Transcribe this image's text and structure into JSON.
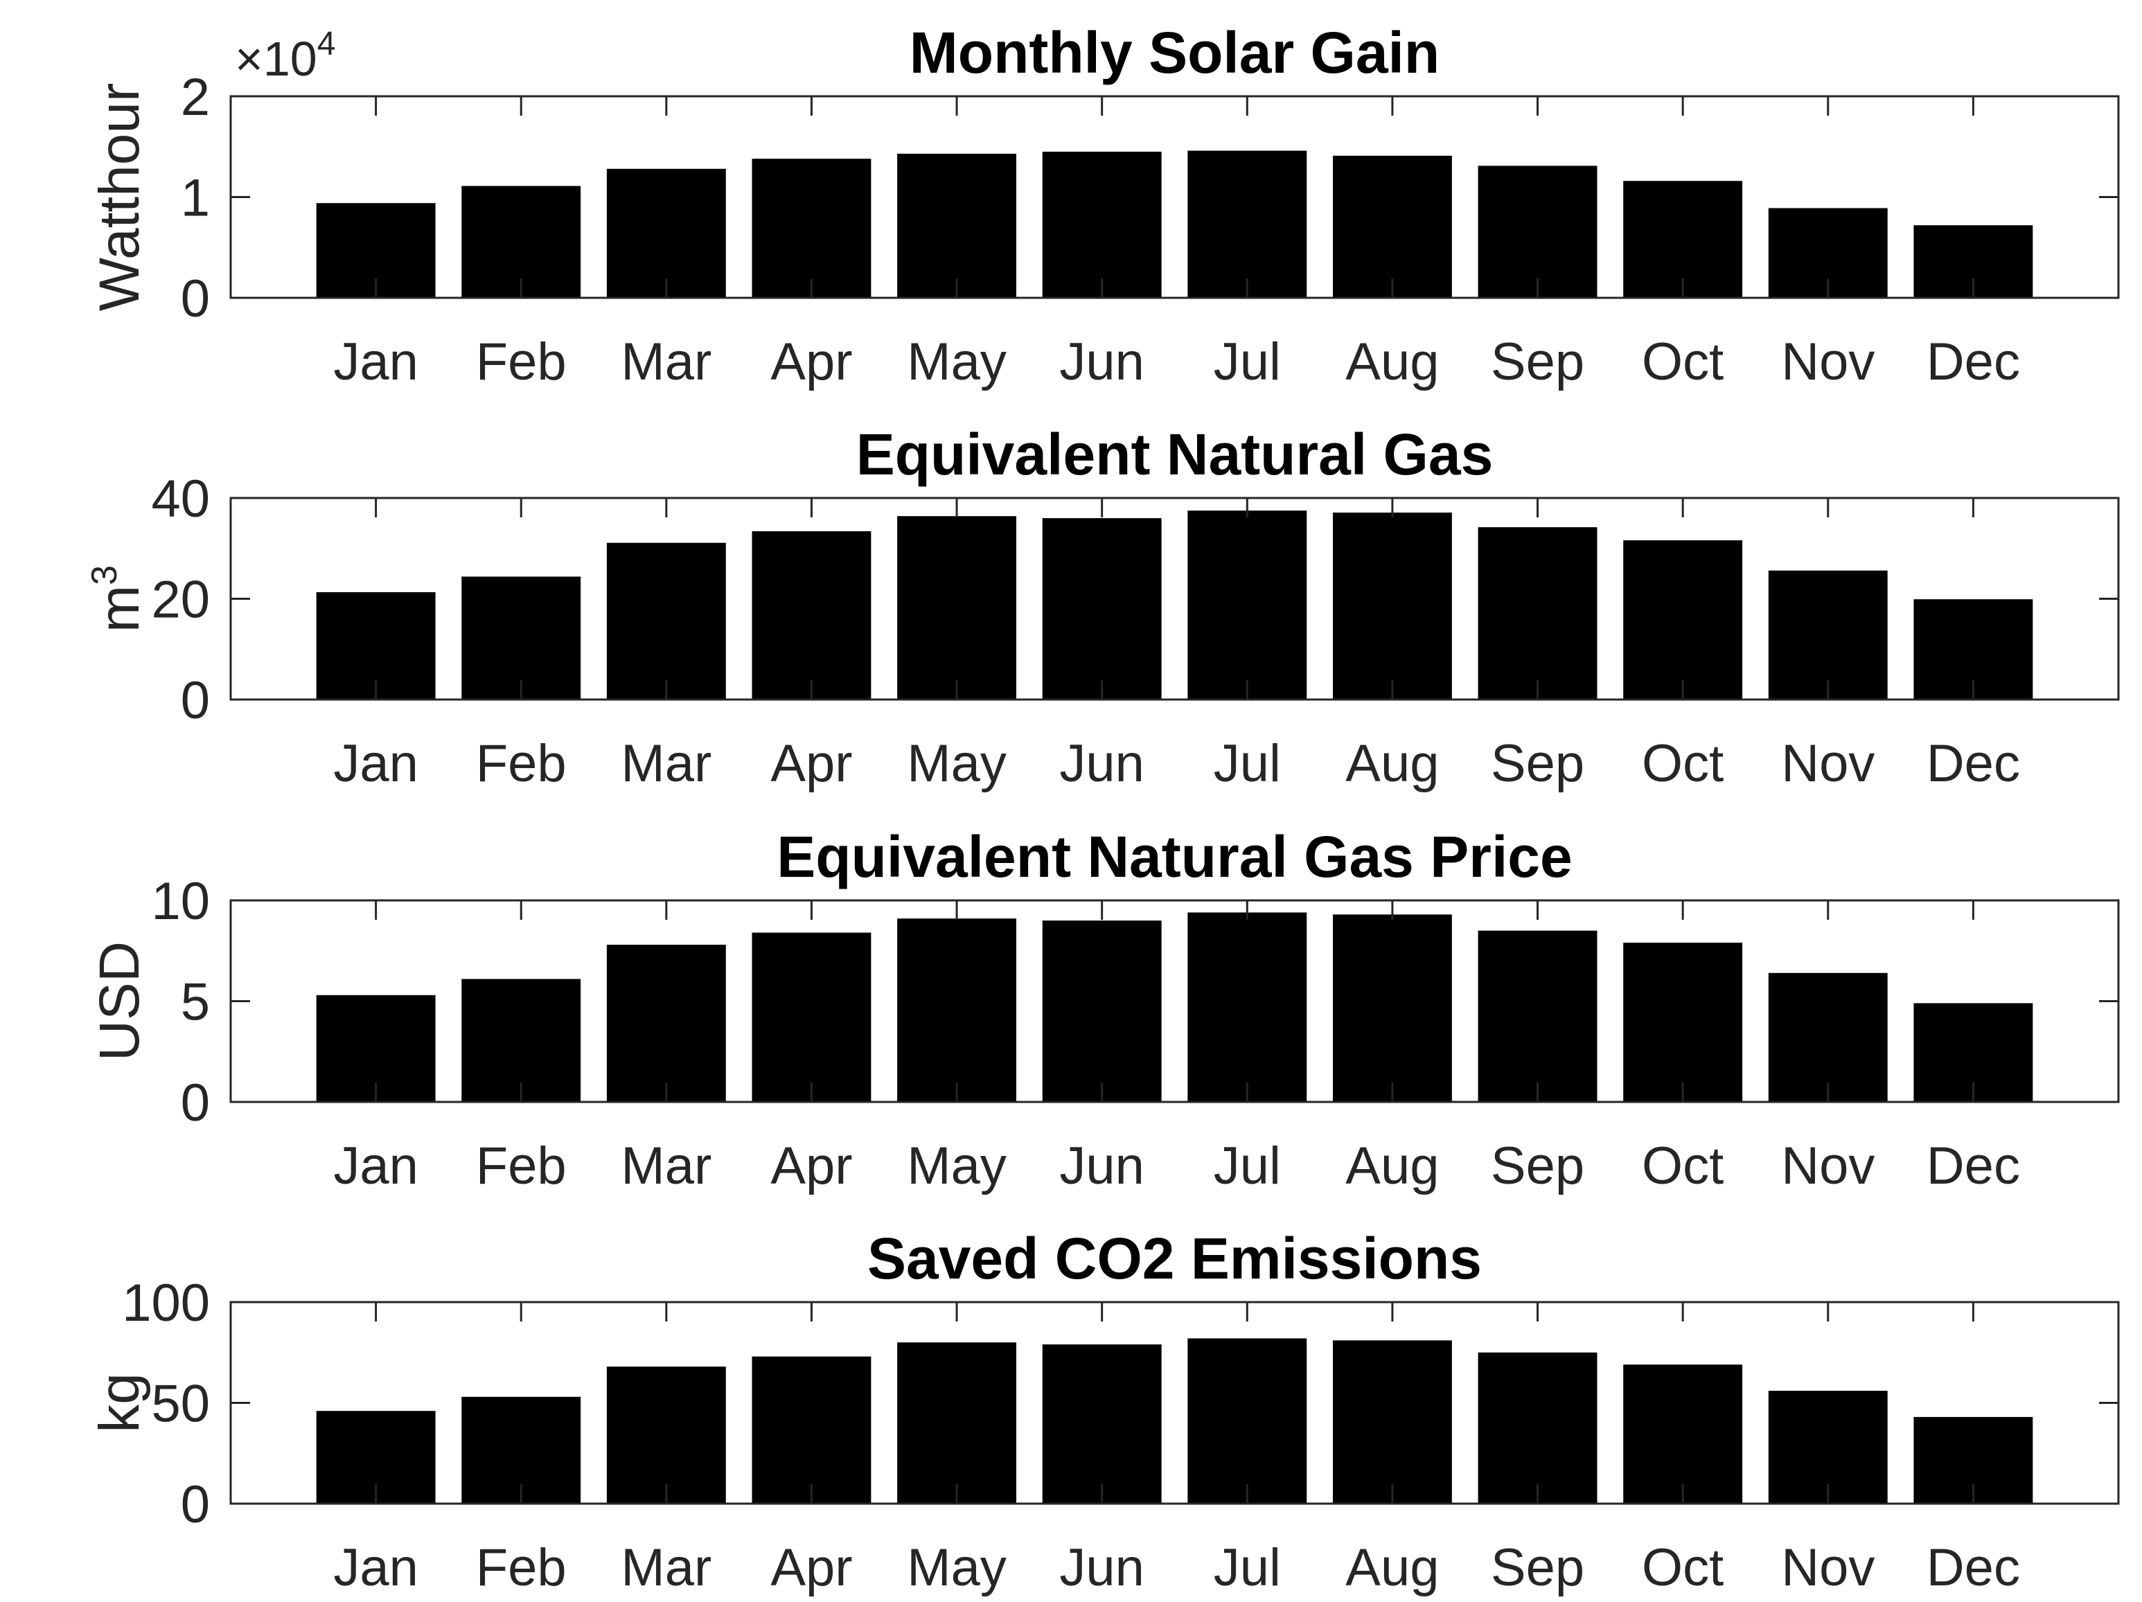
{
  "colors": {
    "bar": "#000000",
    "axis": "#262626",
    "background": "#ffffff"
  },
  "chart_data": [
    {
      "type": "bar",
      "title": "Monthly Solar Gain",
      "xlabel": "",
      "ylabel": "Watthour",
      "ylim": [
        0,
        20000
      ],
      "yticks": [
        0,
        1,
        2
      ],
      "ytick_scale": 10000,
      "exponent_prefix": "×10",
      "exponent_power": "4",
      "categories": [
        "Jan",
        "Feb",
        "Mar",
        "Apr",
        "May",
        "Jun",
        "Jul",
        "Aug",
        "Sep",
        "Oct",
        "Nov",
        "Dec"
      ],
      "values": [
        9400,
        11100,
        12800,
        13800,
        14300,
        14500,
        14600,
        14100,
        13100,
        11600,
        8900,
        7200
      ]
    },
    {
      "type": "bar",
      "title": "Equivalent Natural Gas",
      "xlabel": "",
      "ylabel": "m",
      "ylabel_sup": "3",
      "ylim": [
        0,
        40
      ],
      "yticks": [
        0,
        20,
        40
      ],
      "categories": [
        "Jan",
        "Feb",
        "Mar",
        "Apr",
        "May",
        "Jun",
        "Jul",
        "Aug",
        "Sep",
        "Oct",
        "Nov",
        "Dec"
      ],
      "values": [
        21.3,
        24.4,
        31.1,
        33.4,
        36.4,
        36.0,
        37.5,
        37.1,
        34.2,
        31.6,
        25.6,
        19.9
      ]
    },
    {
      "type": "bar",
      "title": "Equivalent Natural Gas Price",
      "xlabel": "",
      "ylabel": "USD",
      "ylim": [
        0,
        10
      ],
      "yticks": [
        0,
        5,
        10
      ],
      "categories": [
        "Jan",
        "Feb",
        "Mar",
        "Apr",
        "May",
        "Jun",
        "Jul",
        "Aug",
        "Sep",
        "Oct",
        "Nov",
        "Dec"
      ],
      "values": [
        5.3,
        6.1,
        7.8,
        8.4,
        9.1,
        9.0,
        9.4,
        9.3,
        8.5,
        7.9,
        6.4,
        4.9
      ]
    },
    {
      "type": "bar",
      "title": "Saved CO2 Emissions",
      "xlabel": "",
      "ylabel": "kg",
      "ylim": [
        0,
        100
      ],
      "yticks": [
        0,
        50,
        100
      ],
      "categories": [
        "Jan",
        "Feb",
        "Mar",
        "Apr",
        "May",
        "Jun",
        "Jul",
        "Aug",
        "Sep",
        "Oct",
        "Nov",
        "Dec"
      ],
      "values": [
        46,
        53,
        68,
        73,
        80,
        79,
        82,
        81,
        75,
        69,
        56,
        43
      ]
    }
  ]
}
